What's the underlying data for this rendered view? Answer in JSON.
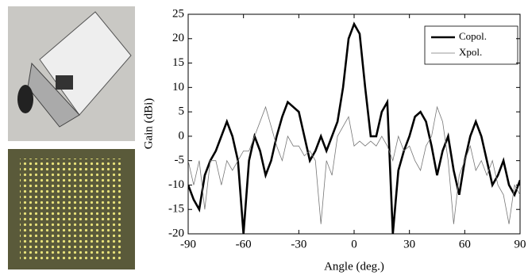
{
  "chart_data": {
    "type": "line",
    "x_label": "Angle (deg.)",
    "y_label": "Gain (dBi)",
    "x": [
      -90,
      -87,
      -84,
      -81,
      -78,
      -75,
      -72,
      -69,
      -66,
      -63,
      -60,
      -57,
      -54,
      -51,
      -48,
      -45,
      -42,
      -39,
      -36,
      -33,
      -30,
      -27,
      -24,
      -21,
      -18,
      -15,
      -12,
      -9,
      -6,
      -3,
      0,
      3,
      6,
      9,
      12,
      15,
      18,
      21,
      24,
      27,
      30,
      33,
      36,
      39,
      42,
      45,
      48,
      51,
      54,
      57,
      60,
      63,
      66,
      69,
      72,
      75,
      78,
      81,
      84,
      87,
      90
    ],
    "series": [
      {
        "name": "Copol.",
        "color": "#000000",
        "values": [
          -10,
          -13,
          -15,
          -8,
          -5,
          -3,
          0,
          3,
          0,
          -5,
          -20,
          -5,
          0,
          -3,
          -8,
          -5,
          0,
          4,
          7,
          6,
          5,
          0,
          -5,
          -3,
          0,
          -3,
          0,
          3,
          10,
          20,
          23,
          21,
          10,
          0,
          0,
          5,
          7,
          -20,
          -7,
          -3,
          0,
          4,
          5,
          3,
          -2,
          -8,
          -3,
          0,
          -7,
          -12,
          -5,
          0,
          3,
          0,
          -5,
          -10,
          -8,
          -5,
          -10,
          -12,
          -9
        ]
      },
      {
        "name": "Xpol.",
        "color": "#777777",
        "values": [
          -5,
          -10,
          -5,
          -15,
          -5,
          -5,
          -10,
          -5,
          -7,
          -5,
          -3,
          -3,
          0,
          3,
          6,
          2,
          -2,
          -5,
          0,
          -2,
          -2,
          -4,
          -3,
          -5,
          -18,
          -5,
          -8,
          0,
          2,
          4,
          -2,
          -1,
          -2,
          -1,
          -2,
          0,
          -2,
          -5,
          0,
          -3,
          -2,
          -5,
          -7,
          -2,
          0,
          6,
          3,
          -5,
          -18,
          -8,
          -5,
          -2,
          -7,
          -5,
          -8,
          -5,
          -10,
          -12,
          -18,
          -10,
          -12
        ]
      }
    ],
    "xlim": [
      -90,
      90
    ],
    "xticks": [
      -90,
      -60,
      -30,
      0,
      30,
      60,
      90
    ],
    "ylim": [
      -20,
      25
    ],
    "yticks": [
      -20,
      -15,
      -10,
      -5,
      0,
      5,
      10,
      15,
      20,
      25
    ],
    "legend": "upper right"
  }
}
